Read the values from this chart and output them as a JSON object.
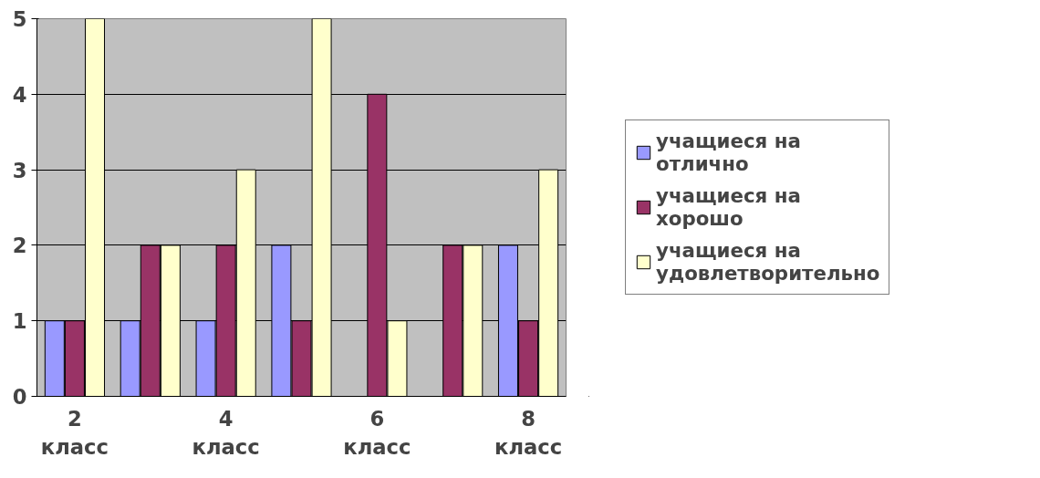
{
  "chart_data": {
    "type": "bar",
    "categories": [
      "2 класс",
      null,
      "4 класс",
      null,
      "6 класс",
      null,
      "8 класс"
    ],
    "series": [
      {
        "name": "учащиеся на отлично",
        "color": "#9999ff",
        "values": [
          1,
          1,
          1,
          2,
          0,
          0,
          2
        ]
      },
      {
        "name": "учащиеся на хорошо",
        "color": "#993366",
        "values": [
          1,
          2,
          2,
          1,
          4,
          2,
          1
        ]
      },
      {
        "name": "учащиеся на удовлетворительно",
        "color": "#ffffcc",
        "values": [
          5,
          2,
          3,
          5,
          1,
          2,
          3
        ]
      }
    ],
    "ylim": [
      0,
      5
    ],
    "yticks": [
      0,
      1,
      2,
      3,
      4,
      5
    ],
    "grid": "y",
    "legend": "right"
  }
}
